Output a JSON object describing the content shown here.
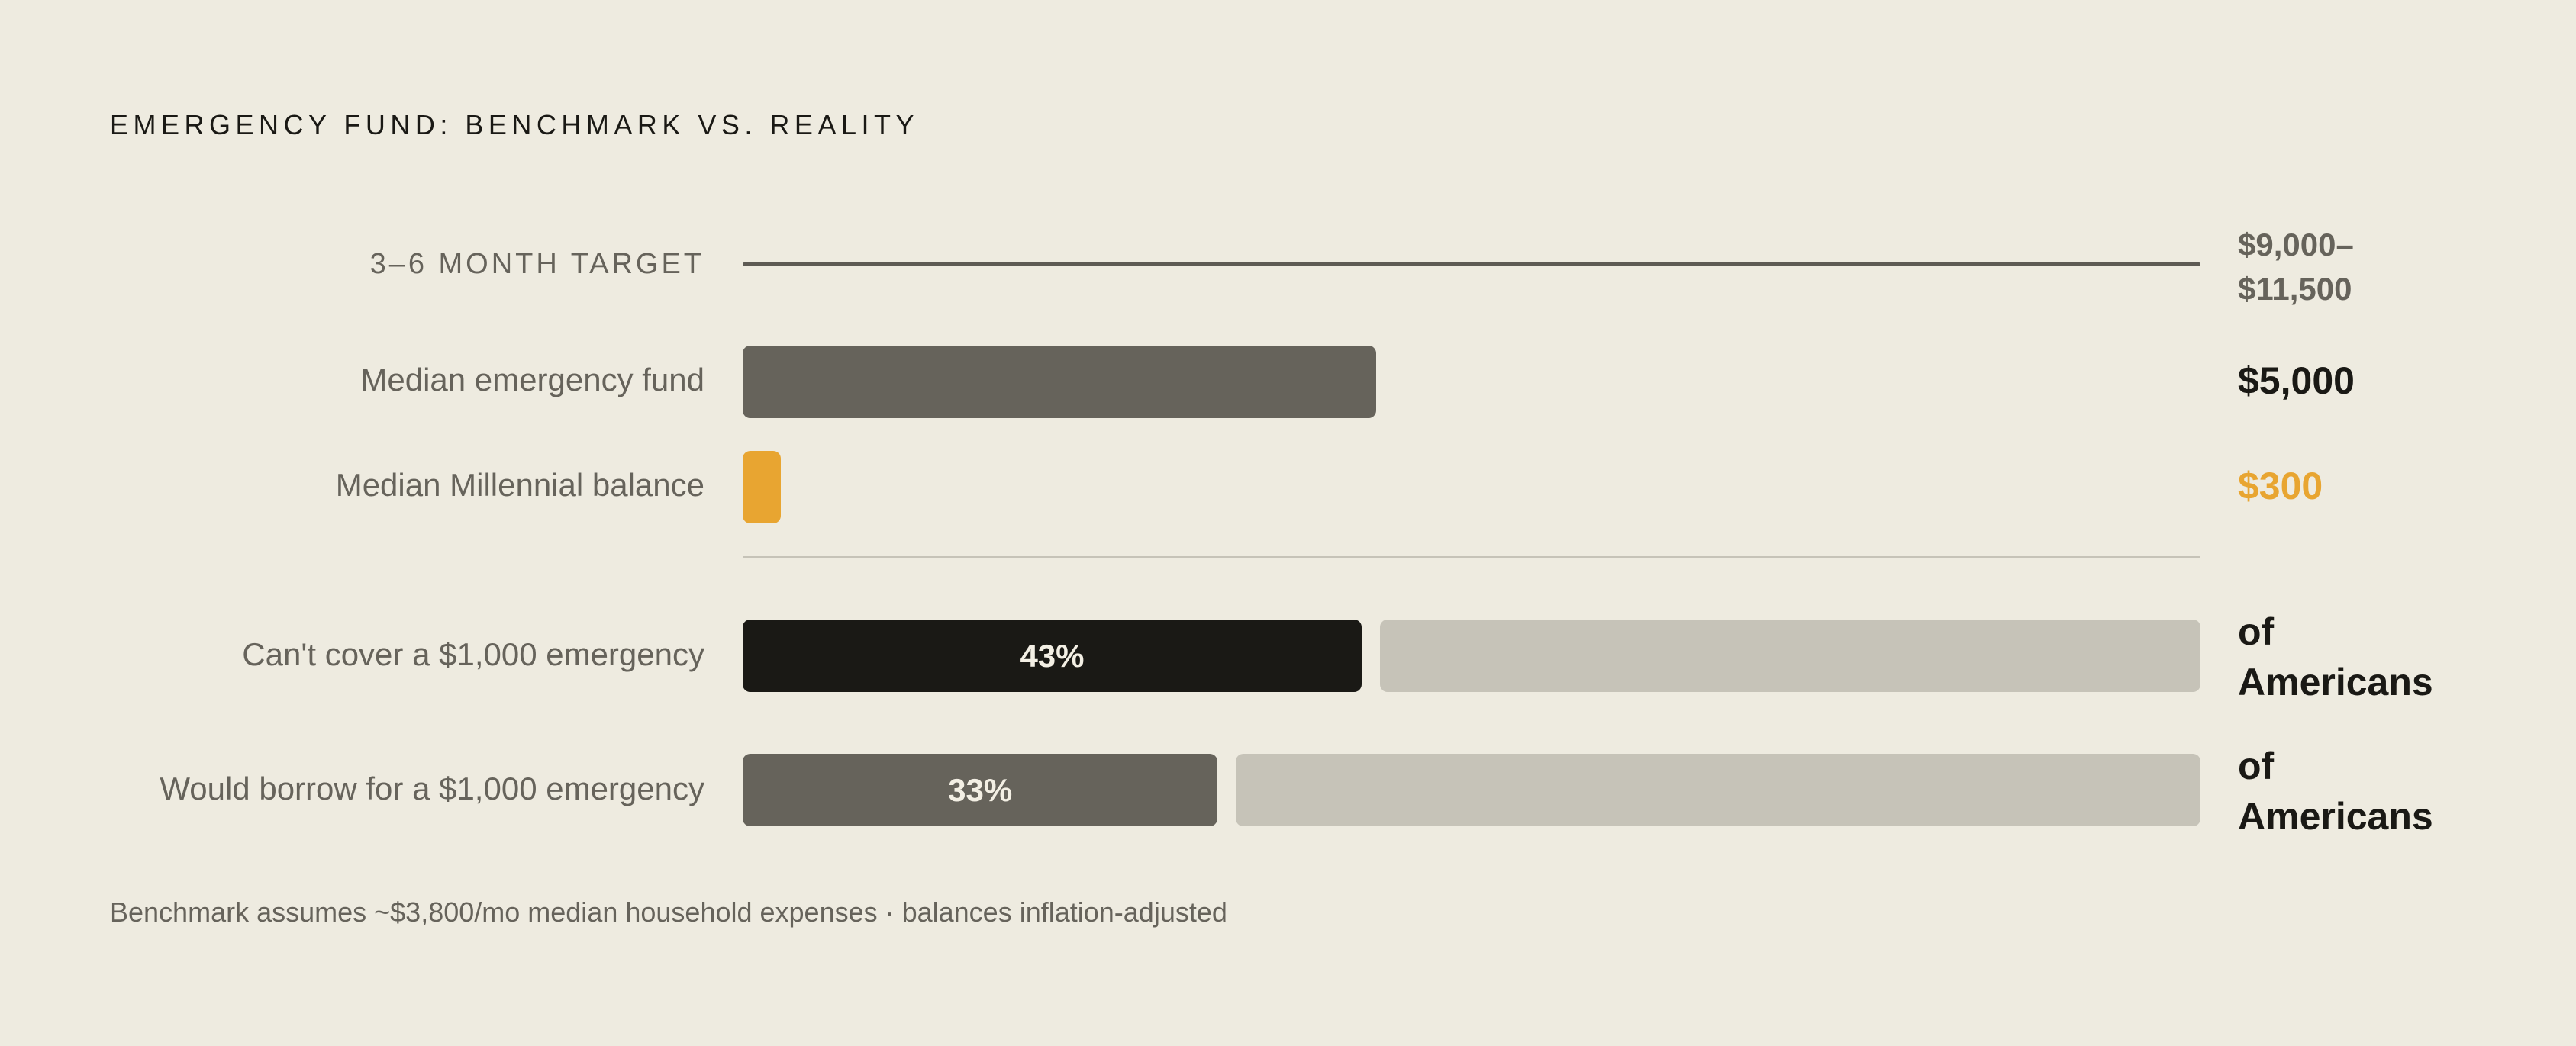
{
  "chart_data": {
    "type": "bar",
    "title": "EMERGENCY FUND: BENCHMARK VS. REALITY",
    "scale_max": 11500,
    "benchmark": {
      "label": "3–6 MONTH TARGET",
      "range": [
        9000,
        11500
      ],
      "value_label_line1": "$9,000–",
      "value_label_line2": "$11,500"
    },
    "balances": [
      {
        "label": "Median emergency fund",
        "value": 5000,
        "value_label": "$5,000",
        "color": "#66635b",
        "value_color": "#1a1915"
      },
      {
        "label": "Median Millennial balance",
        "value": 300,
        "value_label": "$300",
        "color": "#e8a531",
        "value_color": "#e8a531"
      }
    ],
    "percent_rows": [
      {
        "label": "Can't cover a $1,000 emergency",
        "value": 43,
        "value_label": "43%",
        "suffix_line1": "of",
        "suffix_line2": "Americans",
        "color": "#1a1915"
      },
      {
        "label": "Would borrow for a $1,000 emergency",
        "value": 33,
        "value_label": "33%",
        "suffix_line1": "of",
        "suffix_line2": "Americans",
        "color": "#66635b"
      }
    ],
    "remainder_color": "#c6c3b8",
    "footnote": "Benchmark assumes ~$3,800/mo median household expenses · balances inflation-adjusted"
  }
}
